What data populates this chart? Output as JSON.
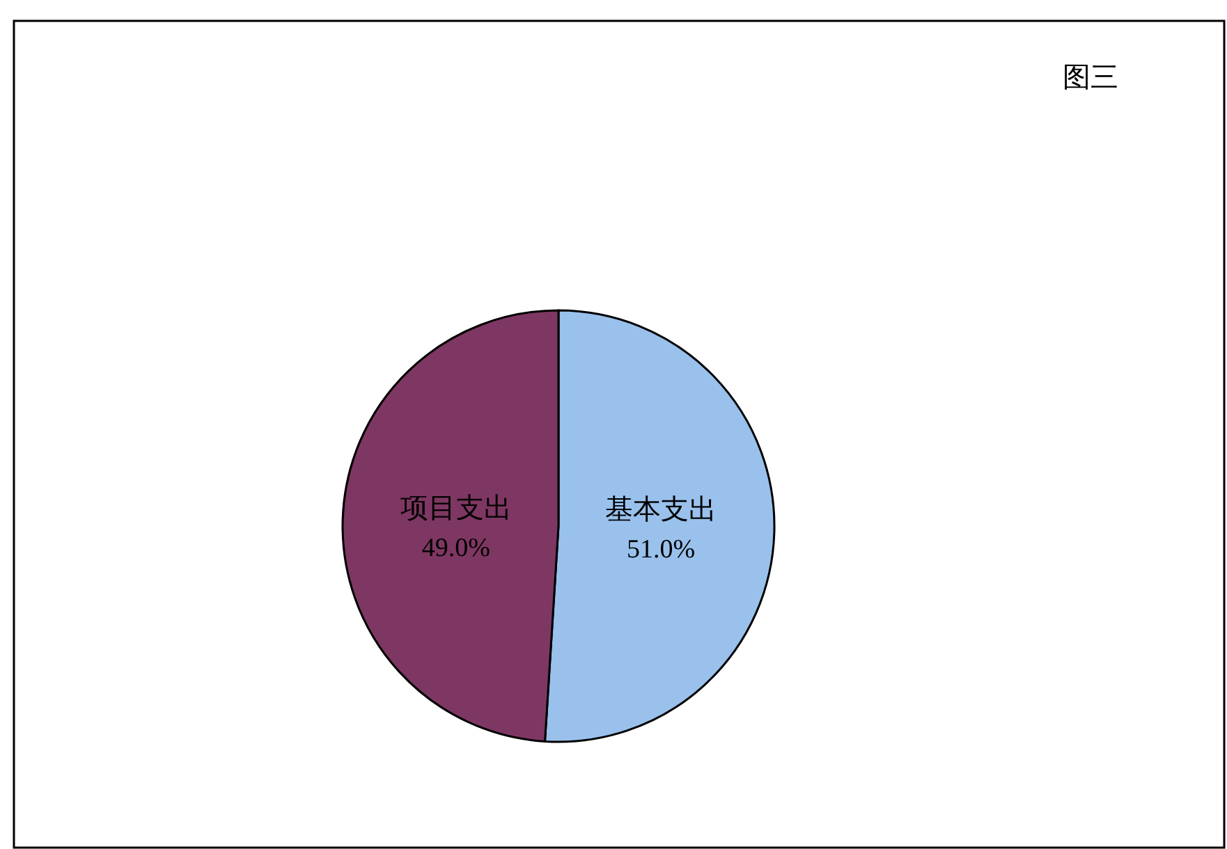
{
  "chart_data": {
    "type": "pie",
    "title": "图三",
    "categories": [
      "基本支出",
      "项目支出"
    ],
    "values": [
      51.0,
      49.0
    ],
    "colors": [
      "#99c1ec",
      "#7e3762"
    ],
    "value_labels": [
      "51.0%",
      "49.0%"
    ]
  }
}
